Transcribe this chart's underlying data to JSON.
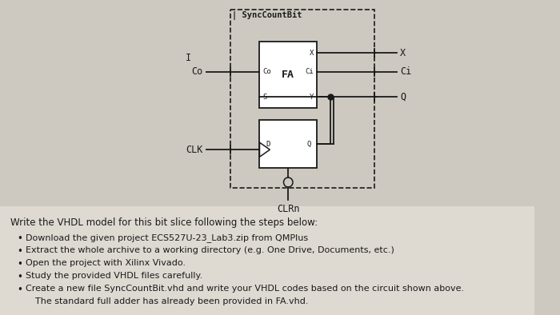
{
  "bg_color": "#cdc9c0",
  "text_area_color": "#d8d4cc",
  "text_color": "#1a1a1a",
  "fig_width": 7.0,
  "fig_height": 3.94,
  "font_size": 8.5,
  "diagram_font_size": 7.5,
  "bullet_points": [
    "Download the given project ECS527U-23_Lab3.zip from QMPlus",
    "Extract the whole archive to a working directory (e.g. One Drive, Documents, etc.)",
    "Open the project with Xilinx Vivado.",
    "Study the provided VHDL files carefully.",
    "Create a new file SyncCountBit.vhd and write your VHDL codes based on the circuit shown above.",
    "The standard full adder has already been provided in FA.vhd."
  ],
  "header_text": "Write the VHDL model for this bit slice following the steps below:"
}
